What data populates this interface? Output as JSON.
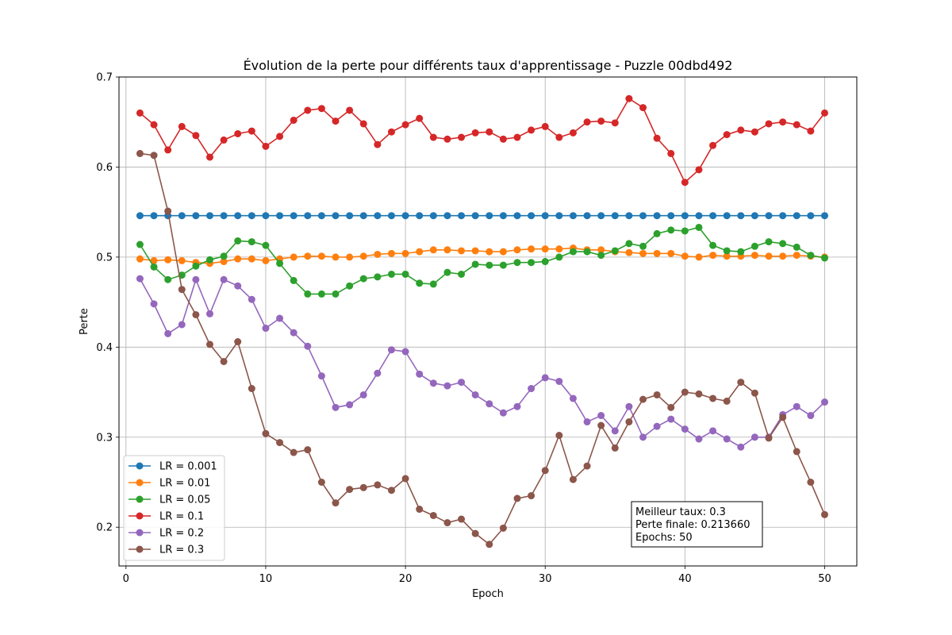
{
  "chart_data": {
    "type": "line",
    "title": "Évolution de la perte pour différents taux d'apprentissage - Puzzle 00dbd492",
    "xlabel": "Epoch",
    "ylabel": "Perte",
    "xlim": [
      -0.5,
      52.3
    ],
    "ylim": [
      0.157,
      0.7
    ],
    "xticks": [
      0,
      10,
      20,
      30,
      40,
      50
    ],
    "yticks": [
      0.2,
      0.3,
      0.4,
      0.5,
      0.6,
      0.7
    ],
    "grid": true,
    "legend_position": "lower-left",
    "x": [
      1,
      2,
      3,
      4,
      5,
      6,
      7,
      8,
      9,
      10,
      11,
      12,
      13,
      14,
      15,
      16,
      17,
      18,
      19,
      20,
      21,
      22,
      23,
      24,
      25,
      26,
      27,
      28,
      29,
      30,
      31,
      32,
      33,
      34,
      35,
      36,
      37,
      38,
      39,
      40,
      41,
      42,
      43,
      44,
      45,
      46,
      47,
      48,
      49,
      50
    ],
    "series": [
      {
        "name": "LR = 0.001",
        "color": "#1f77b4",
        "values": [
          0.546,
          0.546,
          0.546,
          0.546,
          0.546,
          0.546,
          0.546,
          0.546,
          0.546,
          0.546,
          0.546,
          0.546,
          0.546,
          0.546,
          0.546,
          0.546,
          0.546,
          0.546,
          0.546,
          0.546,
          0.546,
          0.546,
          0.546,
          0.546,
          0.546,
          0.546,
          0.546,
          0.546,
          0.546,
          0.546,
          0.546,
          0.546,
          0.546,
          0.546,
          0.546,
          0.546,
          0.546,
          0.546,
          0.546,
          0.546,
          0.546,
          0.546,
          0.546,
          0.546,
          0.546,
          0.546,
          0.546,
          0.546,
          0.546,
          0.546
        ]
      },
      {
        "name": "LR = 0.01",
        "color": "#ff7f0e",
        "values": [
          0.498,
          0.496,
          0.497,
          0.496,
          0.494,
          0.493,
          0.495,
          0.498,
          0.498,
          0.496,
          0.498,
          0.5,
          0.501,
          0.501,
          0.5,
          0.5,
          0.501,
          0.503,
          0.504,
          0.504,
          0.506,
          0.508,
          0.508,
          0.507,
          0.507,
          0.506,
          0.506,
          0.508,
          0.509,
          0.509,
          0.509,
          0.51,
          0.508,
          0.508,
          0.506,
          0.505,
          0.504,
          0.504,
          0.504,
          0.501,
          0.5,
          0.502,
          0.501,
          0.501,
          0.502,
          0.501,
          0.501,
          0.502,
          0.501,
          0.5
        ]
      },
      {
        "name": "LR = 0.05",
        "color": "#2ca02c",
        "values": [
          0.514,
          0.489,
          0.475,
          0.48,
          0.49,
          0.497,
          0.501,
          0.518,
          0.517,
          0.513,
          0.493,
          0.474,
          0.459,
          0.459,
          0.459,
          0.468,
          0.476,
          0.478,
          0.481,
          0.481,
          0.471,
          0.47,
          0.483,
          0.481,
          0.492,
          0.491,
          0.491,
          0.494,
          0.494,
          0.495,
          0.5,
          0.506,
          0.506,
          0.502,
          0.507,
          0.515,
          0.512,
          0.526,
          0.53,
          0.529,
          0.533,
          0.513,
          0.507,
          0.506,
          0.512,
          0.517,
          0.515,
          0.511,
          0.502,
          0.499
        ]
      },
      {
        "name": "LR = 0.1",
        "color": "#d62728",
        "values": [
          0.66,
          0.647,
          0.619,
          0.645,
          0.635,
          0.611,
          0.63,
          0.637,
          0.64,
          0.623,
          0.634,
          0.652,
          0.663,
          0.665,
          0.651,
          0.663,
          0.648,
          0.625,
          0.639,
          0.647,
          0.654,
          0.633,
          0.631,
          0.633,
          0.638,
          0.639,
          0.631,
          0.633,
          0.641,
          0.645,
          0.633,
          0.638,
          0.65,
          0.651,
          0.649,
          0.676,
          0.666,
          0.632,
          0.615,
          0.583,
          0.597,
          0.624,
          0.636,
          0.641,
          0.639,
          0.648,
          0.65,
          0.647,
          0.64,
          0.66
        ]
      },
      {
        "name": "LR = 0.2",
        "color": "#9467bd",
        "values": [
          0.476,
          0.448,
          0.415,
          0.425,
          0.475,
          0.437,
          0.475,
          0.468,
          0.453,
          0.421,
          0.432,
          0.416,
          0.401,
          0.368,
          0.333,
          0.336,
          0.347,
          0.371,
          0.397,
          0.395,
          0.37,
          0.36,
          0.357,
          0.361,
          0.347,
          0.337,
          0.327,
          0.334,
          0.354,
          0.366,
          0.362,
          0.343,
          0.317,
          0.324,
          0.307,
          0.334,
          0.3,
          0.312,
          0.32,
          0.309,
          0.298,
          0.307,
          0.298,
          0.289,
          0.3,
          0.3,
          0.325,
          0.334,
          0.324,
          0.339
        ]
      },
      {
        "name": "LR = 0.3",
        "color": "#8c564b",
        "values": [
          0.615,
          0.613,
          0.551,
          0.464,
          0.436,
          0.403,
          0.384,
          0.406,
          0.354,
          0.304,
          0.294,
          0.283,
          0.286,
          0.25,
          0.227,
          0.242,
          0.244,
          0.247,
          0.241,
          0.254,
          0.22,
          0.213,
          0.205,
          0.209,
          0.193,
          0.181,
          0.199,
          0.232,
          0.235,
          0.263,
          0.302,
          0.253,
          0.268,
          0.313,
          0.288,
          0.317,
          0.342,
          0.347,
          0.333,
          0.35,
          0.348,
          0.343,
          0.34,
          0.361,
          0.349,
          0.299,
          0.322,
          0.284,
          0.25,
          0.214
        ]
      }
    ],
    "annotation": {
      "lines": [
        "Meilleur taux: 0.3",
        "Perte finale: 0.213660",
        "Epochs: 50"
      ],
      "position": "lower-right"
    }
  }
}
